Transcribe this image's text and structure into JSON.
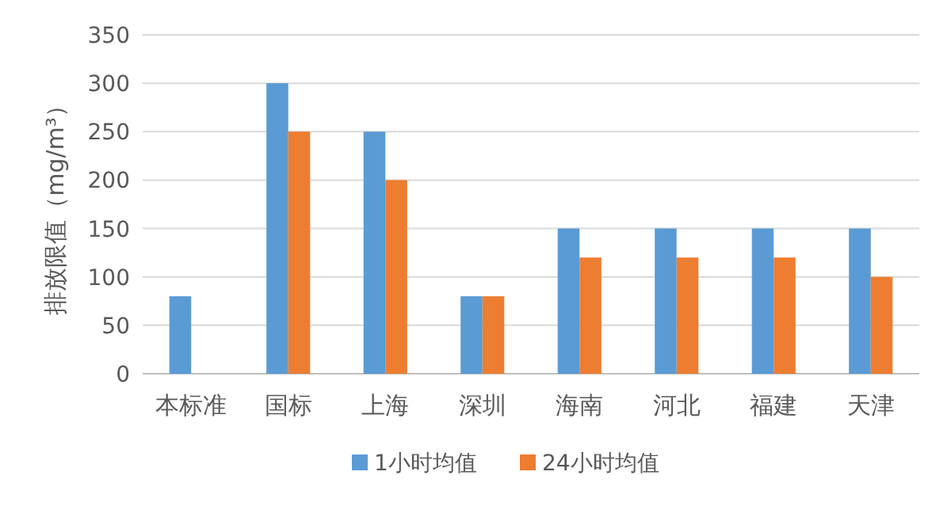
{
  "chart_data": {
    "type": "bar",
    "ylabel": "排放限值（mg/m³）",
    "categories": [
      "本标准",
      "国标",
      "上海",
      "深圳",
      "海南",
      "河北",
      "福建",
      "天津"
    ],
    "series": [
      {
        "name": "1小时均值",
        "color": "#5b9bd5",
        "values": [
          80,
          300,
          250,
          80,
          150,
          150,
          150,
          150
        ]
      },
      {
        "name": "24小时均值",
        "color": "#ed7d31",
        "values": [
          null,
          250,
          200,
          80,
          120,
          120,
          120,
          100
        ]
      }
    ],
    "ylim": [
      0,
      350
    ],
    "yticks": [
      0,
      50,
      100,
      150,
      200,
      250,
      300,
      350
    ],
    "grid": "y",
    "legend": "bottom"
  }
}
